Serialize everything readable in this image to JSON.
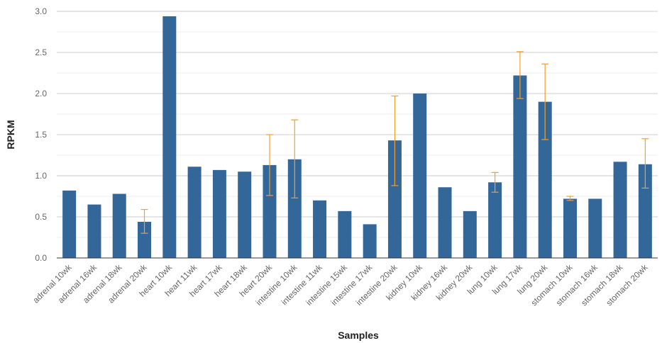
{
  "chart_data": {
    "type": "bar",
    "title": "",
    "xlabel": "Samples",
    "ylabel": "RPKM",
    "ylim": [
      0,
      3.0
    ],
    "yticks": [
      "0.0",
      "0.5",
      "1.0",
      "1.5",
      "2.0",
      "2.5",
      "3.0"
    ],
    "grid": true,
    "categories": [
      "adrenal 10wk",
      "adrenal 16wk",
      "adrenal 18wk",
      "adrenal 20wk",
      "heart 10wk",
      "heart 11wk",
      "heart 17wk",
      "heart 18wk",
      "heart 20wk",
      "intestine 10wk",
      "intestine 11wk",
      "intestine 15wk",
      "intestine 17wk",
      "intestine 20wk",
      "kidney 10wk",
      "kidney 16wk",
      "kidney 20wk",
      "lung 10wk",
      "lung 17wk",
      "lung 20wk",
      "stomach 10wk",
      "stomach 16wk",
      "stomach 18wk",
      "stomach 20wk"
    ],
    "values": [
      0.82,
      0.65,
      0.78,
      0.44,
      2.94,
      1.11,
      1.07,
      1.05,
      1.13,
      1.2,
      0.7,
      0.57,
      0.41,
      1.43,
      2.0,
      0.86,
      0.57,
      0.92,
      2.22,
      1.9,
      0.72,
      0.72,
      1.17,
      1.14
    ],
    "error_bars": [
      null,
      null,
      null,
      [
        0.3,
        0.59
      ],
      null,
      null,
      null,
      null,
      [
        0.76,
        1.5
      ],
      [
        0.73,
        1.68
      ],
      null,
      null,
      null,
      [
        0.88,
        1.97
      ],
      null,
      null,
      null,
      [
        0.8,
        1.04
      ],
      [
        1.94,
        2.51
      ],
      [
        1.44,
        2.36
      ],
      [
        0.7,
        0.75
      ],
      null,
      null,
      [
        0.85,
        1.45
      ]
    ],
    "colors": {
      "bar": "#336699",
      "error": "#f0a030",
      "grid": "#cccccc",
      "minor_grid": "#eeeeee"
    }
  }
}
